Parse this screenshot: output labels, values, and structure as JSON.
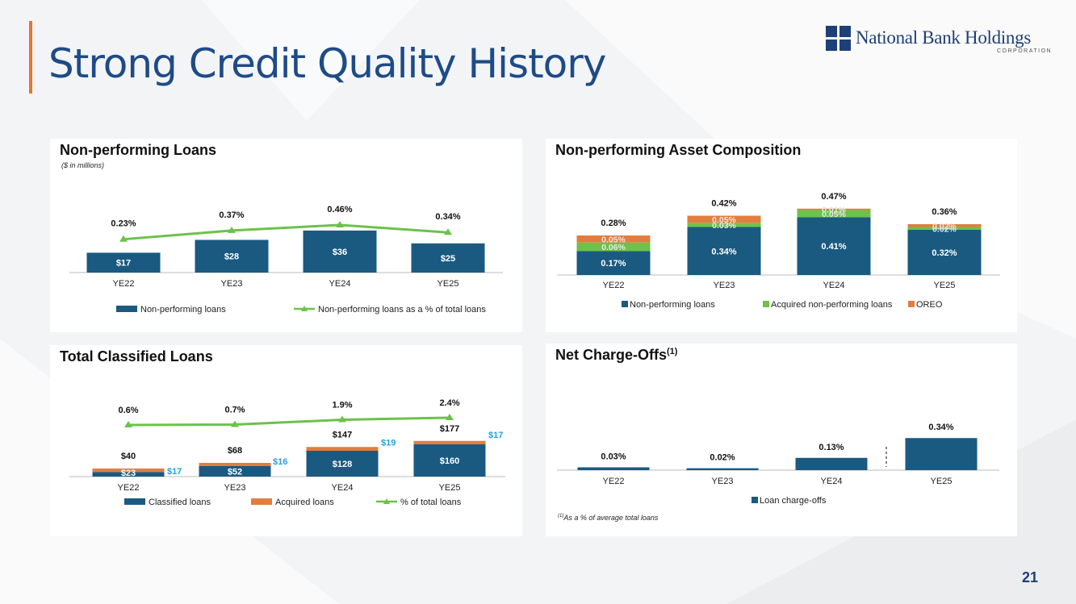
{
  "title": "Strong Credit Quality History",
  "logo": {
    "name": "National Bank Holdings",
    "subtitle": "CORPORATION"
  },
  "page_number": "21",
  "colors": {
    "navy": "#1a5a80",
    "green": "#6cc24a",
    "orange": "#e27d3f",
    "cyan": "#1fa3d9",
    "title_blue": "#1e4b86"
  },
  "chart_data": [
    {
      "id": "npl",
      "type": "bar",
      "title": "Non-performing Loans",
      "subtitle": "($ in millions)",
      "categories": [
        "YE22",
        "YE23",
        "YE24",
        "YE25"
      ],
      "series": [
        {
          "name": "Non-performing loans",
          "type": "bar",
          "values": [
            17,
            28,
            36,
            25
          ],
          "labels": [
            "$17",
            "$28",
            "$36",
            "$25"
          ]
        },
        {
          "name": "Non-performing loans as a % of total loans",
          "type": "line",
          "values": [
            0.23,
            0.37,
            0.46,
            0.34
          ],
          "labels": [
            "0.23%",
            "0.37%",
            "0.46%",
            "0.34%"
          ]
        }
      ],
      "legend": [
        "Non-performing loans",
        "Non-performing loans as a % of total loans"
      ]
    },
    {
      "id": "npa",
      "type": "bar",
      "stacked": true,
      "title": "Non-performing Asset Composition",
      "categories": [
        "YE22",
        "YE23",
        "YE24",
        "YE25"
      ],
      "series": [
        {
          "name": "Non-performing loans",
          "values": [
            0.17,
            0.34,
            0.41,
            0.32
          ],
          "labels": [
            "0.17%",
            "0.34%",
            "0.41%",
            "0.32%"
          ]
        },
        {
          "name": "Acquired non-performing loans",
          "values": [
            0.06,
            0.03,
            0.05,
            0.02
          ],
          "labels": [
            "0.06%",
            "0.03%",
            "0.05%",
            "0.02%"
          ]
        },
        {
          "name": "OREO",
          "values": [
            0.05,
            0.05,
            0.01,
            0.02
          ],
          "labels": [
            "0.05%",
            "0.05%",
            "0.01%",
            "0.02%"
          ]
        }
      ],
      "totals": [
        "0.28%",
        "0.42%",
        "0.47%",
        "0.36%"
      ],
      "legend": [
        "Non-performing loans",
        "Acquired non-performing loans",
        "OREO"
      ]
    },
    {
      "id": "tcl",
      "type": "bar",
      "stacked": true,
      "title": "Total Classified Loans",
      "categories": [
        "YE22",
        "YE23",
        "YE24",
        "YE25"
      ],
      "series": [
        {
          "name": "Classified loans",
          "values": [
            23,
            52,
            128,
            160
          ],
          "labels": [
            "$23",
            "$52",
            "$128",
            "$160"
          ]
        },
        {
          "name": "Acquired loans",
          "values": [
            17,
            16,
            19,
            17
          ],
          "labels": [
            "$17",
            "$16",
            "$19",
            "$17"
          ]
        },
        {
          "name": "% of total loans",
          "type": "line",
          "values": [
            0.6,
            0.7,
            1.9,
            2.4
          ],
          "labels": [
            "0.6%",
            "0.7%",
            "1.9%",
            "2.4%"
          ]
        }
      ],
      "totals": [
        "$40",
        "$68",
        "$147",
        "$177"
      ],
      "legend": [
        "Classified loans",
        "Acquired loans",
        "% of total loans"
      ]
    },
    {
      "id": "nco",
      "type": "bar",
      "title": "Net Charge-Offs",
      "title_sup": "(1)",
      "categories": [
        "YE22",
        "YE23",
        "YE24",
        "YE25"
      ],
      "series": [
        {
          "name": "Loan charge-offs",
          "values": [
            0.03,
            0.02,
            0.13,
            0.34
          ],
          "labels": [
            "0.03%",
            "0.02%",
            "0.13%",
            "0.34%"
          ]
        }
      ],
      "legend": [
        "Loan charge-offs"
      ],
      "footnote_sup": "(1)",
      "footnote": "As a % of average total loans"
    }
  ]
}
